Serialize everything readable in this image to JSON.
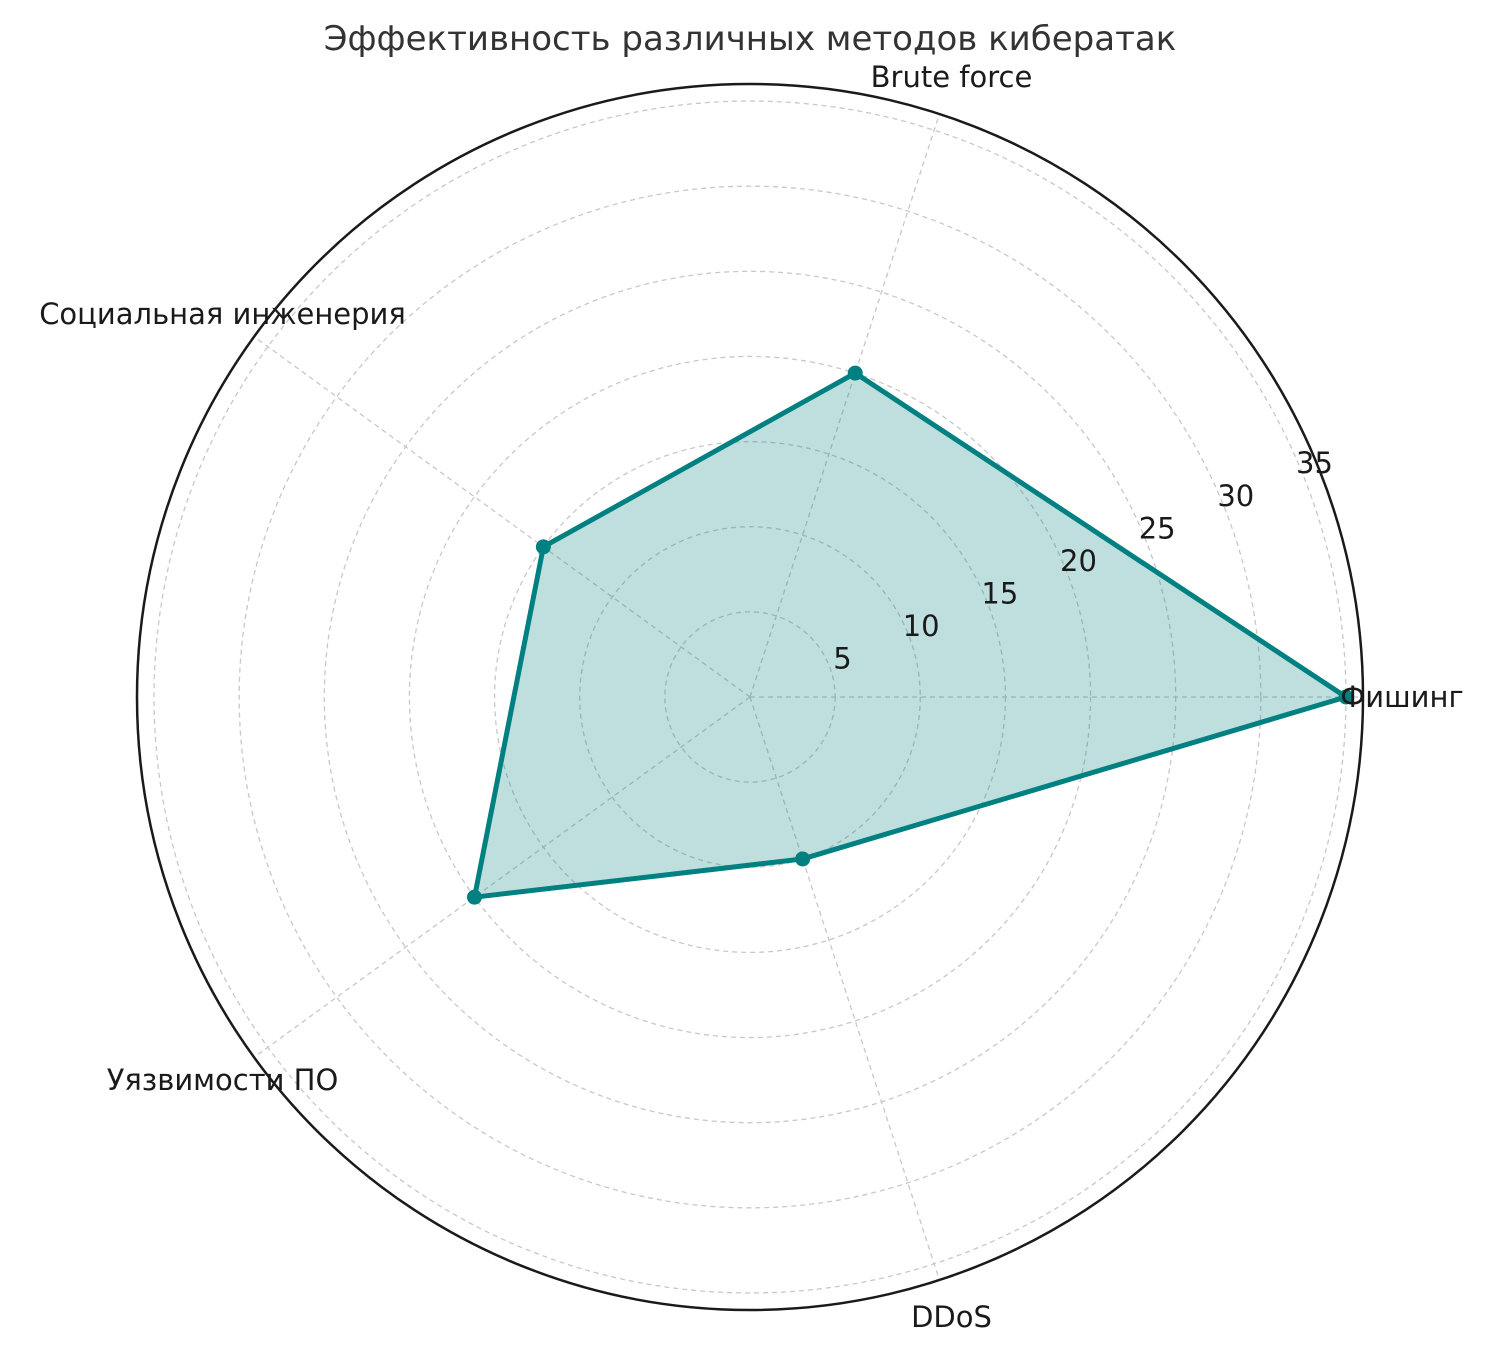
{
  "chart_data": {
    "type": "radar",
    "title": "Эффективность различных методов кибератак",
    "categories": [
      "Фишинг",
      "Brute force",
      "Социальная инженерия",
      "Уязвимости ПО",
      "DDoS"
    ],
    "values": [
      35,
      20,
      15,
      20,
      10
    ],
    "rlim": [
      0,
      36
    ],
    "rticks": [
      5,
      10,
      15,
      20,
      25,
      30,
      35
    ],
    "grid": true,
    "colors": {
      "line": "#008080",
      "fill": "#008080",
      "grid": "#c8c8c8",
      "frame": "#1a1a1a"
    }
  }
}
